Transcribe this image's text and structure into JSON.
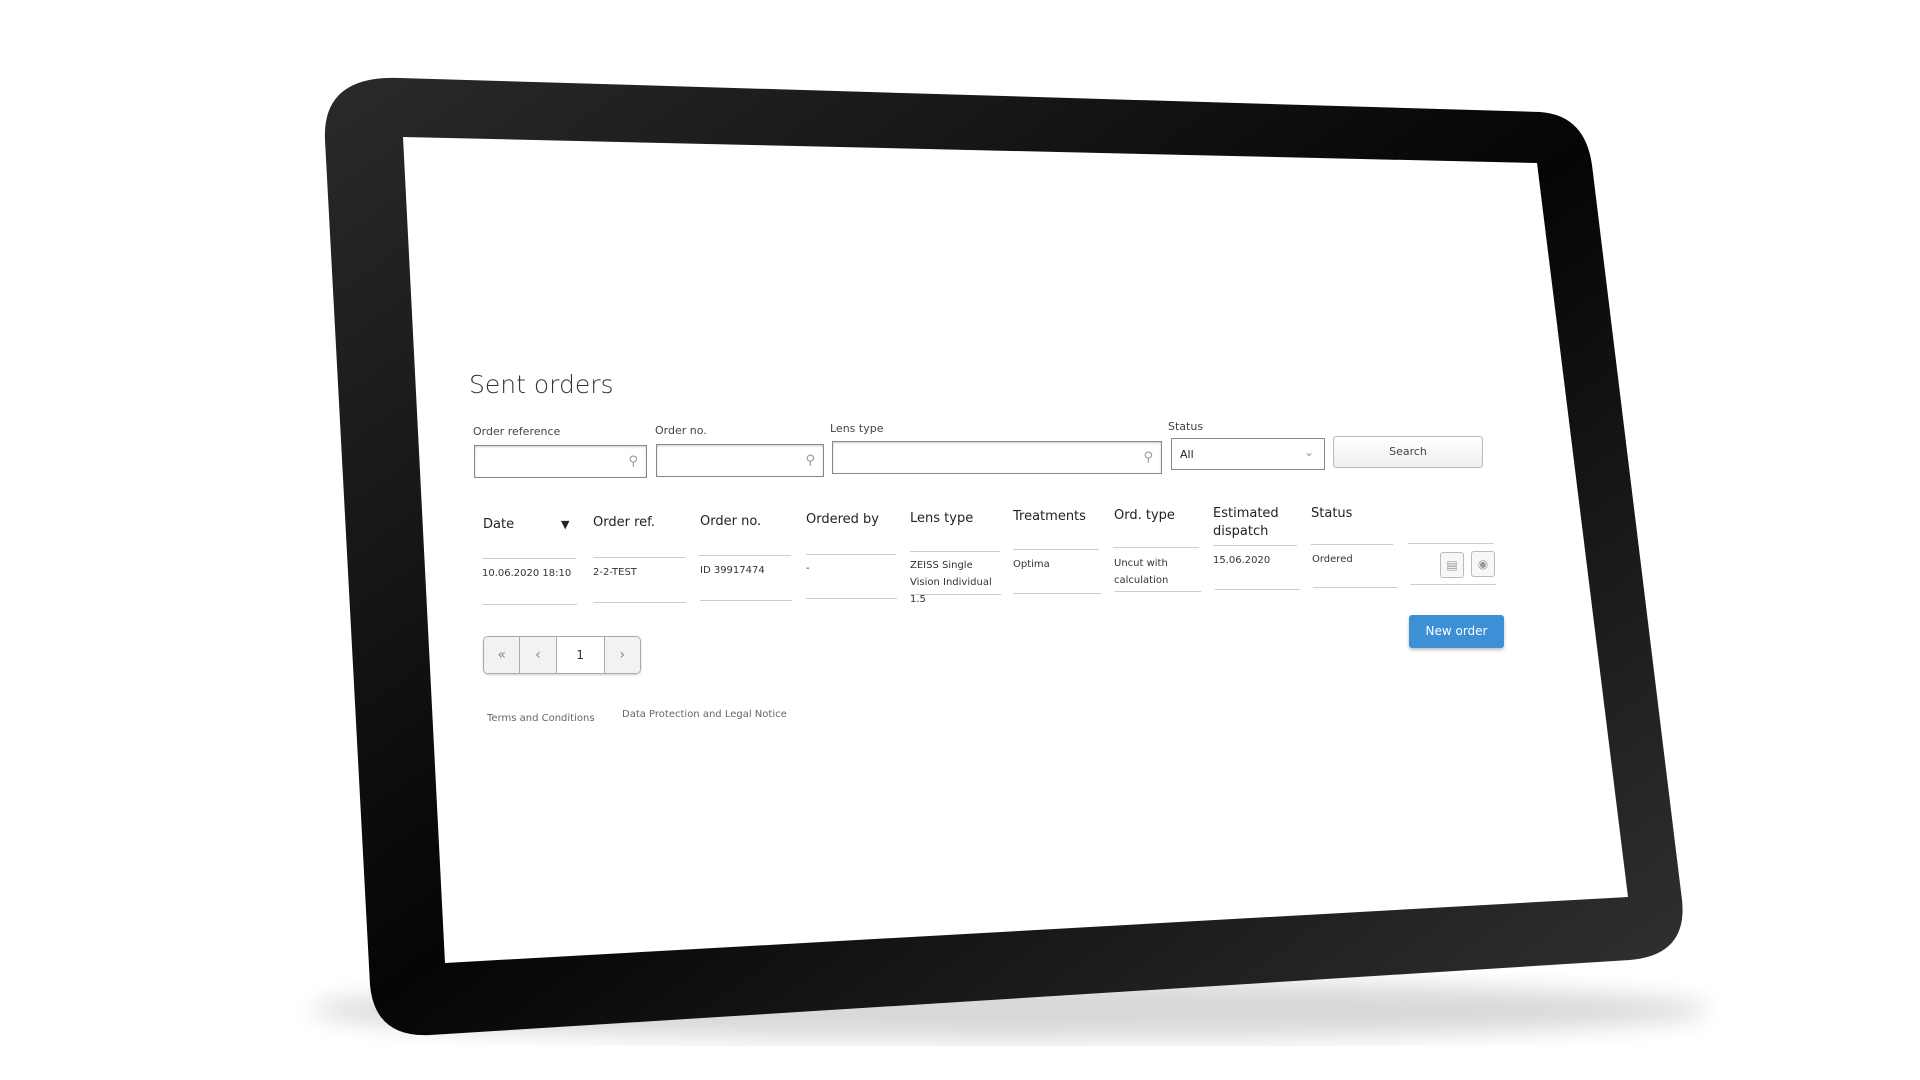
{
  "page": {
    "title": "Sent orders"
  },
  "filters": {
    "order_reference_label": "Order reference",
    "order_no_label": "Order no.",
    "lens_type_label": "Lens type",
    "status_label": "Status",
    "status_value": "All",
    "search_label": "Search",
    "search_icon": "magnifier-icon"
  },
  "table": {
    "headers": [
      "Date",
      "Order ref.",
      "Order no.",
      "Ordered by",
      "Lens type",
      "Treatments",
      "Ord. type",
      "Estimated dispatch",
      "Status"
    ],
    "rows": [
      {
        "date": "10.06.2020 18:10",
        "order_ref": "2-2-TEST",
        "order_no": "ID 39917474",
        "ordered_by": "-",
        "lens_type": "ZEISS Single Vision Individual 1.5",
        "treatments": "Optima",
        "ord_type": "Uncut with calculation",
        "estimated_dispatch": "15.06.2020",
        "status": "Ordered"
      }
    ]
  },
  "pagination": {
    "first": "«",
    "prev": "‹",
    "current": "1",
    "next": "›"
  },
  "actions": {
    "new_order": "New order"
  },
  "footer": {
    "terms": "Terms and Conditions",
    "privacy": "Data Protection and Legal Notice"
  },
  "colors": {
    "accent": "#3d8fd6",
    "device": "#111111"
  }
}
